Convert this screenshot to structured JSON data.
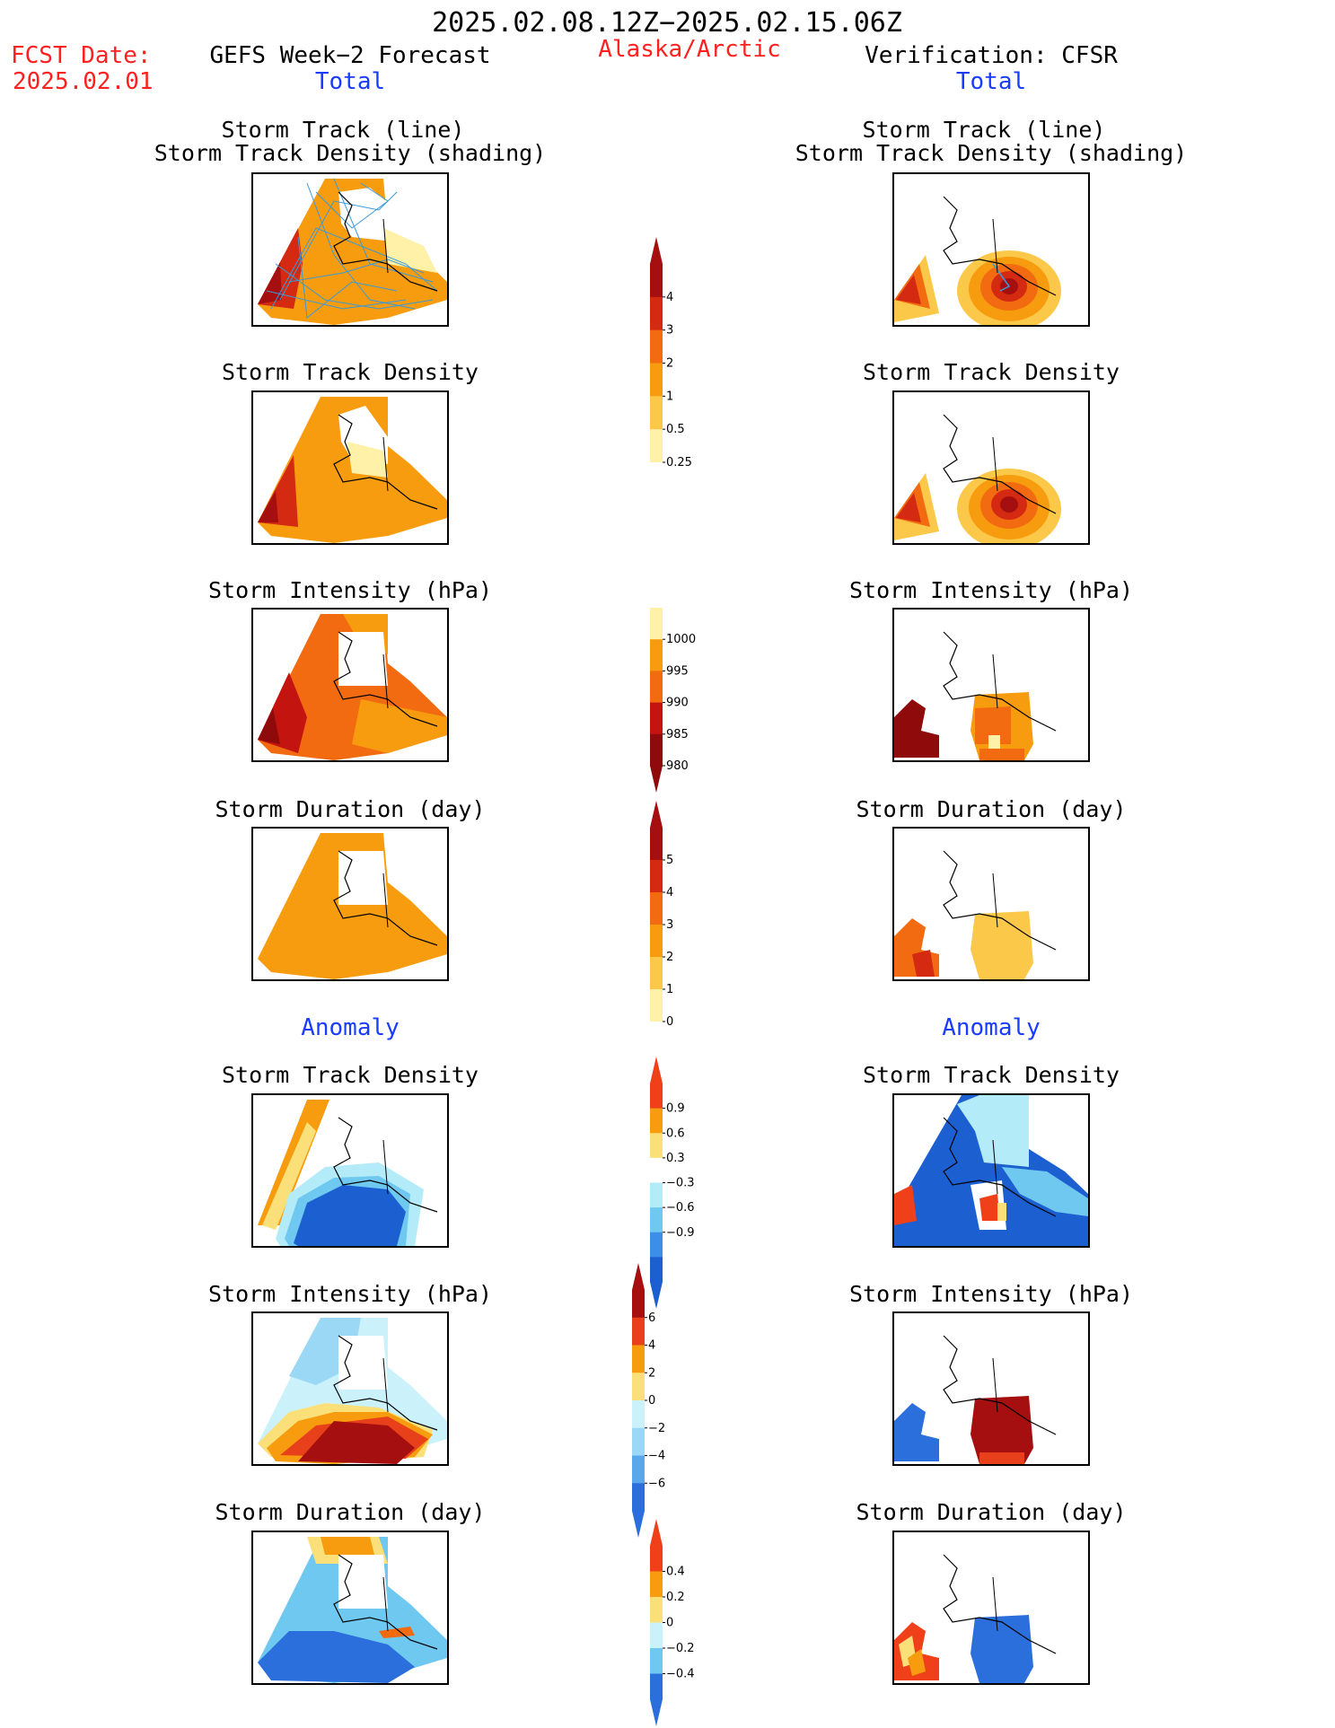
{
  "header": {
    "period": "2025.02.08.12Z−2025.02.15.06Z",
    "fcst_label": "FCST Date:",
    "fcst_date": "2025.02.01",
    "left_title": "GEFS Week−2 Forecast",
    "region": "Alaska/Arctic",
    "right_title": "Verification: CFSR",
    "total_left": "Total",
    "total_right": "Total",
    "anomaly_left": "Anomaly",
    "anomaly_right": "Anomaly"
  },
  "panels": {
    "r1_line1": "Storm Track (line)",
    "r1_line2": "Storm Track Density (shading)",
    "r2": "Storm Track Density",
    "r3": "Storm Intensity (hPa)",
    "r4": "Storm Duration (day)",
    "r5": "Storm Track Density",
    "r6": "Storm Intensity (hPa)",
    "r7": "Storm Duration (day)"
  },
  "colorbars": {
    "density": {
      "labels": [
        "4",
        "3",
        "2",
        "1",
        "0.5",
        "0.25"
      ],
      "colors": [
        "#a50f0f",
        "#d42a12",
        "#f26b10",
        "#f79c0f",
        "#fbc84a",
        "#fff1a8"
      ]
    },
    "intensity": {
      "labels": [
        "1000",
        "995",
        "990",
        "985",
        "980"
      ],
      "colors": [
        "#fff1a8",
        "#f79c0f",
        "#f26b10",
        "#c4140f",
        "#8f0a0a"
      ]
    },
    "duration": {
      "labels": [
        "5",
        "4",
        "3",
        "2",
        "1",
        "0"
      ],
      "colors": [
        "#a50f0f",
        "#d42a12",
        "#f26b10",
        "#f79c0f",
        "#fbc84a",
        "#fff1a8"
      ]
    },
    "density_anom": {
      "labels": [
        "0.9",
        "0.6",
        "0.3",
        "−0.3",
        "−0.6",
        "−0.9"
      ],
      "colors": [
        "#f0401a",
        "#f79c0f",
        "#fbe07a",
        "#ffffff",
        "#b3ecf8",
        "#6fc8f0",
        "#3c8ee6",
        "#1c5fd0"
      ]
    },
    "intensity_anom": {
      "labels": [
        "6",
        "4",
        "2",
        "0",
        "−2",
        "−4",
        "−6"
      ],
      "colors": [
        "#a50f0f",
        "#e8401a",
        "#f79c0f",
        "#fbe07a",
        "#cbf2fb",
        "#9ad8f5",
        "#5aa8ec",
        "#2a6fdc"
      ]
    },
    "duration_anom": {
      "labels": [
        "0.4",
        "0.2",
        "0",
        "−0.2",
        "−0.4"
      ],
      "colors": [
        "#f0401a",
        "#f79c0f",
        "#fbe07a",
        "#cbf2fb",
        "#6fc8f0",
        "#2a6fdc"
      ]
    }
  },
  "colors": {
    "title_red": "#ff2020",
    "label_blue": "#1a3cff"
  }
}
